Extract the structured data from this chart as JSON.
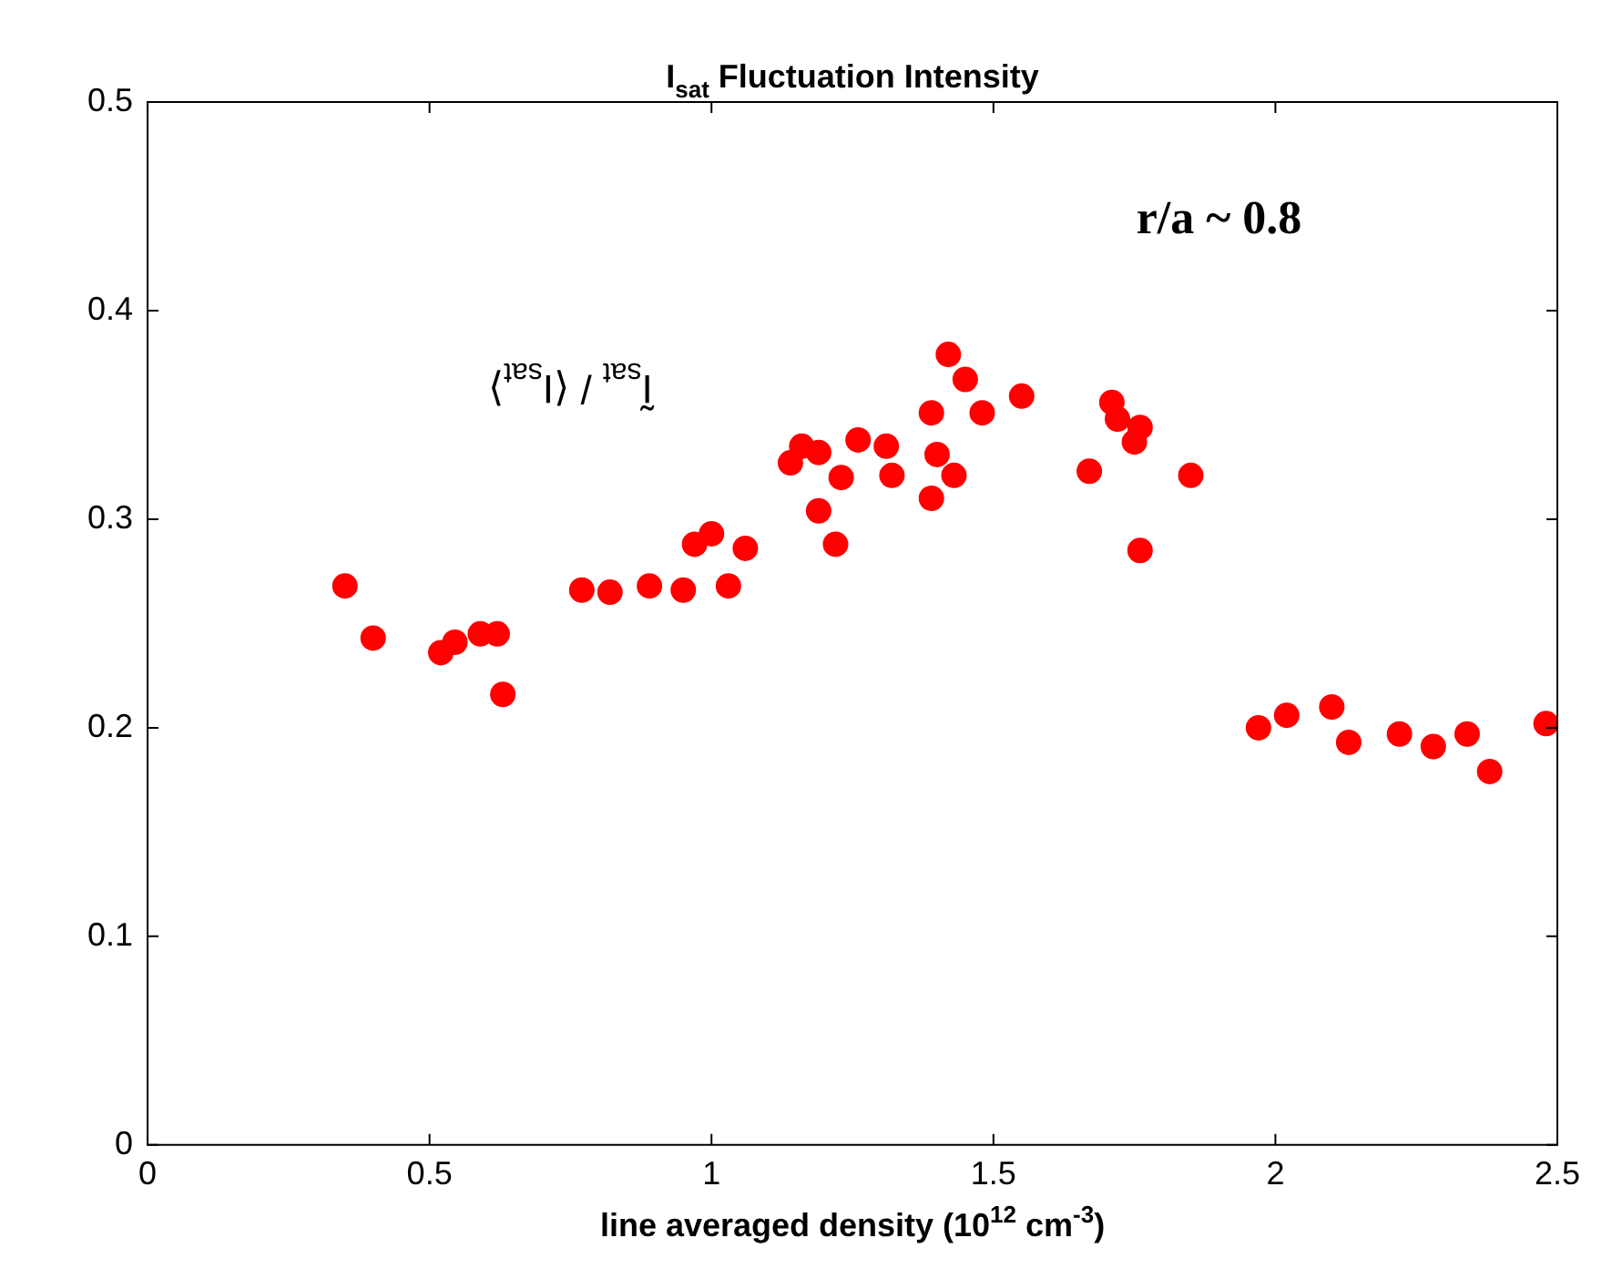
{
  "chart_data": {
    "type": "scatter",
    "title": "I$_{sat}$ Fluctuation Intensity",
    "xlabel": "line averaged density (10$^{12}$ cm$^{-3}$)",
    "annotations": [
      "r/a ~ 0.8",
      "Ĩ$_{sat}$ / ⟨I$_{sat}$⟩"
    ],
    "xlim": [
      0,
      2.5
    ],
    "xticks": [
      0,
      0.5,
      1,
      1.5,
      2,
      2.5
    ],
    "ylim": [
      0,
      0.5
    ],
    "yticks": [
      0,
      0.1,
      0.2,
      0.3,
      0.4,
      0.5
    ],
    "grid": false,
    "legend": false,
    "marker": "circle",
    "series": [
      {
        "color": "#ff0000",
        "x": [
          0.35,
          0.4,
          0.52,
          0.545,
          0.59,
          0.62,
          0.63,
          0.77,
          0.82,
          0.89,
          0.95,
          0.97,
          1.0,
          1.03,
          1.06,
          1.14,
          1.16,
          1.19,
          1.19,
          1.22,
          1.23,
          1.26,
          1.31,
          1.32,
          1.39,
          1.39,
          1.4,
          1.42,
          1.43,
          1.45,
          1.48,
          1.55,
          1.67,
          1.71,
          1.72,
          1.75,
          1.76,
          1.76,
          1.85,
          1.97,
          2.02,
          2.1,
          2.13,
          2.22,
          2.28,
          2.34,
          2.38,
          2.48
        ],
        "values": [
          0.268,
          0.243,
          0.236,
          0.241,
          0.245,
          0.245,
          0.216,
          0.266,
          0.265,
          0.268,
          0.266,
          0.288,
          0.293,
          0.268,
          0.286,
          0.327,
          0.335,
          0.332,
          0.304,
          0.288,
          0.32,
          0.338,
          0.335,
          0.321,
          0.351,
          0.31,
          0.331,
          0.379,
          0.321,
          0.367,
          0.351,
          0.359,
          0.323,
          0.356,
          0.348,
          0.337,
          0.344,
          0.285,
          0.321,
          0.2,
          0.206,
          0.21,
          0.193,
          0.197,
          0.191,
          0.197,
          0.179,
          0.202
        ]
      }
    ]
  }
}
